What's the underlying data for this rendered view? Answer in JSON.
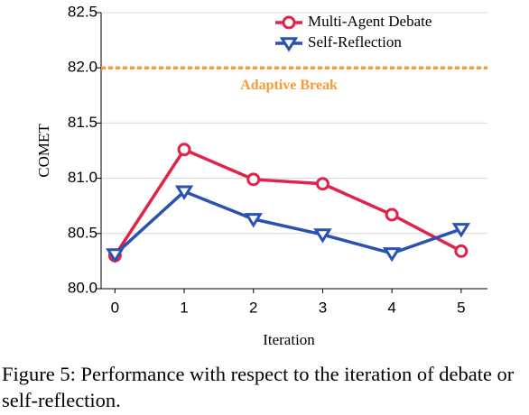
{
  "chart_data": {
    "type": "line",
    "xlabel": "Iteration",
    "ylabel": "COMET",
    "x": [
      0,
      1,
      2,
      3,
      4,
      5
    ],
    "xlim": [
      -0.2,
      5.38
    ],
    "xticks": [
      0,
      1,
      2,
      3,
      4,
      5
    ],
    "ylim": [
      80.0,
      82.5
    ],
    "yticks": [
      {
        "value": 80.0,
        "label": "80.0"
      },
      80.5,
      {
        "value": 81.0,
        "label": "81.0"
      },
      81.5,
      {
        "value": 82.0,
        "label": "82.0"
      },
      82.5
    ],
    "grid": true,
    "legend": "upper right",
    "series": [
      {
        "name": "Multi-Agent Debate",
        "color": "#e0234a",
        "marker": "circle",
        "values": [
          80.3,
          81.26,
          80.99,
          80.95,
          80.67,
          80.34
        ]
      },
      {
        "name": "Self-Reflection",
        "color": "#2a52b0",
        "marker": "triangle-down",
        "values": [
          80.31,
          80.88,
          80.63,
          80.49,
          80.32,
          80.54
        ]
      }
    ],
    "hline": {
      "value": 82.0,
      "label": "Adaptive Break",
      "color": "#f39c38"
    }
  },
  "caption": "Figure 5: Performance with respect to the iteration of debate or self-reflection."
}
